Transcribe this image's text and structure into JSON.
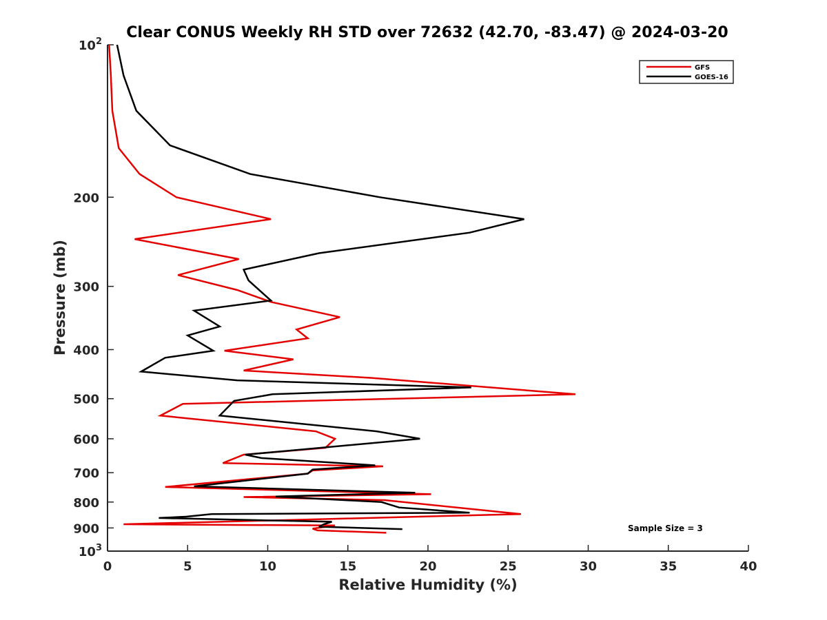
{
  "chart_data": {
    "type": "line",
    "title": "Clear CONUS Weekly RH STD over 72632 (42.70, -83.47) @ 2024-03-20",
    "xlabel": "Relative Humidity (%)",
    "ylabel": "Pressure (mb)",
    "xlim": [
      0,
      40
    ],
    "ylim": [
      100,
      1000
    ],
    "y_scale": "log",
    "y_reversed": true,
    "x_ticks": [
      "0",
      "5",
      "10",
      "15",
      "20",
      "25",
      "30",
      "35",
      "40"
    ],
    "y_ticks": [
      {
        "value": 100,
        "base": "10",
        "exp": "2",
        "label": ""
      },
      {
        "value": 200,
        "label": "200"
      },
      {
        "value": 300,
        "label": "300"
      },
      {
        "value": 400,
        "label": "400"
      },
      {
        "value": 500,
        "label": "500"
      },
      {
        "value": 600,
        "label": "600"
      },
      {
        "value": 700,
        "label": "700"
      },
      {
        "value": 800,
        "label": "800"
      },
      {
        "value": 900,
        "label": "900"
      },
      {
        "value": 1000,
        "base": "10",
        "exp": "3",
        "label": ""
      }
    ],
    "grid": false,
    "legend_position": "top-right",
    "annotation": "Sample Size = 3",
    "series": [
      {
        "name": "GFS",
        "color": "#e50000",
        "x": [
          0.1,
          0.2,
          0.3,
          0.7,
          2.0,
          4.3,
          10.2,
          1.7,
          8.2,
          4.4,
          8.1,
          10.2,
          14.5,
          11.8,
          12.5,
          7.3,
          11.6,
          8.5,
          16.5,
          29.2,
          4.7,
          3.3,
          13.0,
          14.2,
          13.6,
          8.5,
          7.2,
          17.2,
          12.8,
          12.5,
          3.6,
          20.2,
          8.5,
          17.3,
          25.8,
          1.0,
          14.2,
          12.8,
          13.1,
          17.4
        ],
        "y": [
          100,
          114,
          135,
          160,
          180,
          200,
          221,
          242,
          265,
          285,
          305,
          322,
          345,
          365,
          380,
          402,
          418,
          440,
          455,
          490,
          512,
          540,
          580,
          600,
          625,
          645,
          670,
          680,
          693,
          703,
          747,
          772,
          782,
          793,
          845,
          885,
          890,
          903,
          910,
          920
        ]
      },
      {
        "name": "GOES-16",
        "color": "#000000",
        "x": [
          0.6,
          1.0,
          1.8,
          3.9,
          8.9,
          17.0,
          26.0,
          22.6,
          13.2,
          8.5,
          8.8,
          10.2,
          5.4,
          7.0,
          5.0,
          6.6,
          3.6,
          2.1,
          8.1,
          22.7,
          10.3,
          7.9,
          7.0,
          16.8,
          19.5,
          8.6,
          9.6,
          16.7,
          12.8,
          12.5,
          5.4,
          19.2,
          10.5,
          17.1,
          18.2,
          22.6,
          6.5,
          4.9,
          3.2,
          14.0,
          13.5,
          13.2,
          18.4
        ],
        "y": [
          100,
          115,
          135,
          158,
          180,
          200,
          221,
          235,
          258,
          278,
          292,
          320,
          335,
          360,
          375,
          402,
          415,
          442,
          460,
          475,
          490,
          505,
          540,
          580,
          600,
          645,
          655,
          677,
          690,
          703,
          745,
          767,
          780,
          800,
          820,
          840,
          845,
          855,
          860,
          875,
          885,
          895,
          905
        ]
      }
    ]
  }
}
